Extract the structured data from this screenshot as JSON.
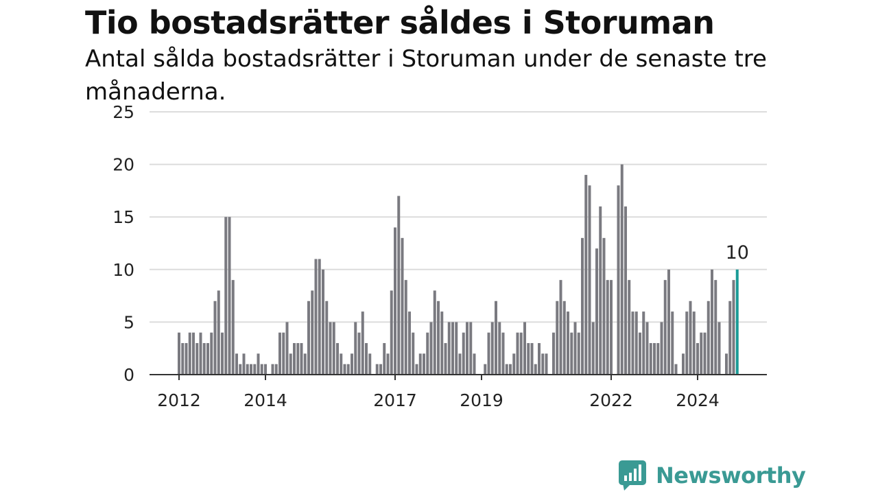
{
  "header": {
    "title": "Tio bostadsrätter såldes i Storuman",
    "subtitle": "Antal sålda bostadsrätter i Storuman under de senaste tre månaderna."
  },
  "brand": {
    "name": "Newsworthy",
    "color": "#3a9a94"
  },
  "chart_data": {
    "type": "bar",
    "title": "Tio bostadsrätter såldes i Storuman",
    "subtitle": "Antal sålda bostadsrätter i Storuman under de senaste tre månaderna.",
    "xlabel": "",
    "ylabel": "",
    "ylim": [
      0,
      25
    ],
    "yticks": [
      0,
      5,
      10,
      15,
      20,
      25
    ],
    "xticks": [
      "2012",
      "2014",
      "2017",
      "2019",
      "2022",
      "2024"
    ],
    "grid": true,
    "legend": "none",
    "bar_color": "#7a7a80",
    "highlight_color": "#1a9b96",
    "first_period": "2012-01",
    "last_period": "2024-12",
    "annotation": {
      "label": "10",
      "value": 10
    },
    "values": [
      4,
      3,
      3,
      4,
      4,
      3,
      4,
      3,
      3,
      4,
      7,
      8,
      4,
      15,
      15,
      9,
      2,
      1,
      2,
      1,
      1,
      1,
      2,
      1,
      1,
      0,
      1,
      1,
      4,
      4,
      5,
      2,
      3,
      3,
      3,
      2,
      7,
      8,
      11,
      11,
      10,
      7,
      5,
      5,
      3,
      2,
      1,
      1,
      2,
      5,
      4,
      6,
      3,
      2,
      0,
      1,
      1,
      3,
      2,
      8,
      14,
      17,
      13,
      9,
      6,
      4,
      1,
      2,
      2,
      4,
      5,
      8,
      7,
      6,
      3,
      5,
      5,
      5,
      2,
      4,
      5,
      5,
      2,
      0,
      0,
      1,
      4,
      5,
      7,
      5,
      4,
      1,
      1,
      2,
      4,
      4,
      5,
      3,
      3,
      1,
      3,
      2,
      2,
      0,
      4,
      7,
      9,
      7,
      6,
      4,
      5,
      4,
      13,
      19,
      18,
      5,
      12,
      16,
      13,
      9,
      9,
      0,
      18,
      20,
      16,
      9,
      6,
      6,
      4,
      6,
      5,
      3,
      3,
      3,
      5,
      9,
      10,
      6,
      1,
      0,
      2,
      6,
      7,
      6,
      3,
      4,
      4,
      7,
      10,
      9,
      5,
      0,
      2,
      7,
      9,
      10
    ]
  }
}
